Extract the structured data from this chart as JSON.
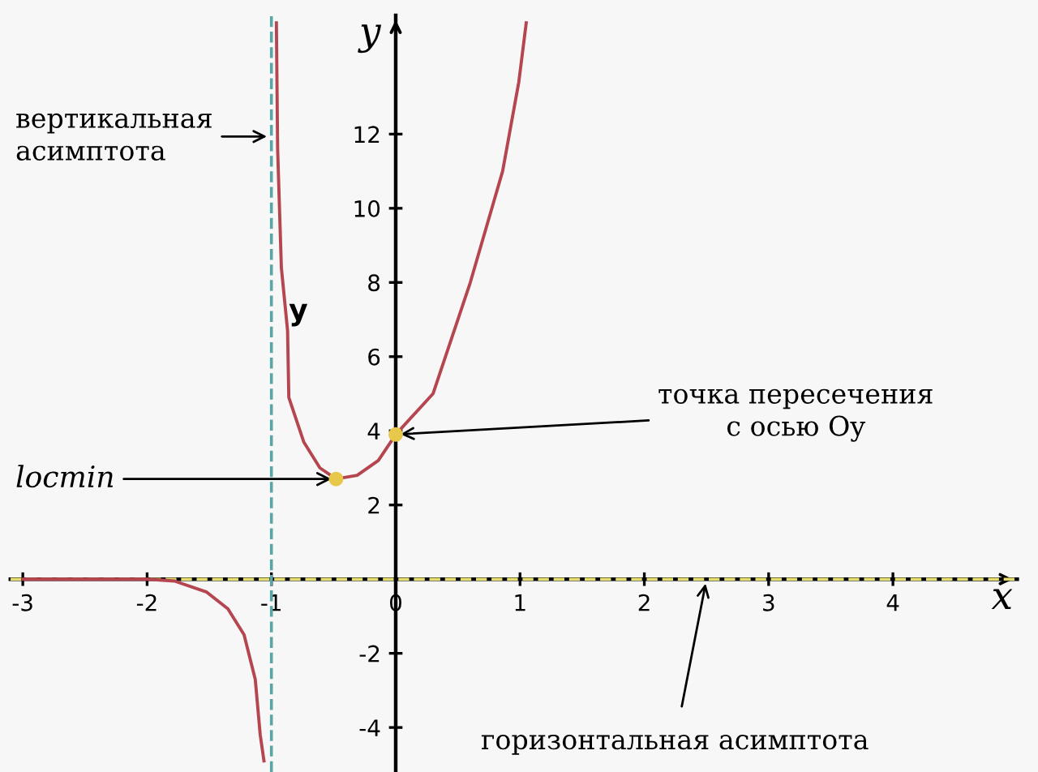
{
  "chart_data": {
    "type": "line",
    "xlabel": "x",
    "ylabel": "y",
    "xlim": [
      -3.1,
      5.0
    ],
    "ylim": [
      -5.2,
      15.2
    ],
    "xticks": [
      -3,
      -2,
      -1,
      0,
      1,
      2,
      3,
      4
    ],
    "yticks": [
      -4,
      -2,
      2,
      4,
      6,
      8,
      10,
      12
    ],
    "grid": false,
    "legend": false,
    "marker": "none",
    "line_style": "solid",
    "series": [
      {
        "name": "y",
        "color": "#b5454f",
        "x": [
          -3,
          -2,
          -1.78,
          -1.52,
          -1.35,
          -1.22,
          -1.13,
          -1.09,
          -1.06,
          null,
          -0.96,
          -0.95,
          -0.92,
          -0.87,
          -0.86,
          -0.74,
          -0.61,
          -0.48,
          -0.31,
          -0.14,
          0,
          0.3,
          0.6,
          0.86,
          0.99,
          1.05
        ],
        "values": [
          0,
          0,
          -0.05,
          -0.35,
          -0.8,
          -1.5,
          -2.7,
          -4.2,
          -4.9,
          null,
          15.0,
          11.6,
          8.4,
          6.7,
          4.9,
          3.7,
          3.0,
          2.7,
          2.8,
          3.2,
          3.9,
          5.0,
          8.0,
          11.0,
          13.4,
          15.0
        ]
      },
      {
        "type": "scatter",
        "marker": "circle",
        "color": "#e8c84a",
        "x": [
          -0.48,
          0
        ],
        "values": [
          2.7,
          3.9
        ]
      }
    ],
    "ref_lines": [
      {
        "axis": "x",
        "value": -1,
        "label": "вертикальная\nасимптота",
        "color": "#5aa6a6",
        "line_style": "dashed"
      },
      {
        "axis": "y",
        "value": 0,
        "label": "горизонтальная асимптота",
        "color": "#e6df6e",
        "line_style": "dashed"
      }
    ],
    "annotations": [
      {
        "text": "locmin",
        "x": -0.48,
        "y": 2.7
      },
      {
        "text": "точка пересечения\nс осью Oy",
        "x": 0,
        "y": 3.9
      }
    ]
  }
}
